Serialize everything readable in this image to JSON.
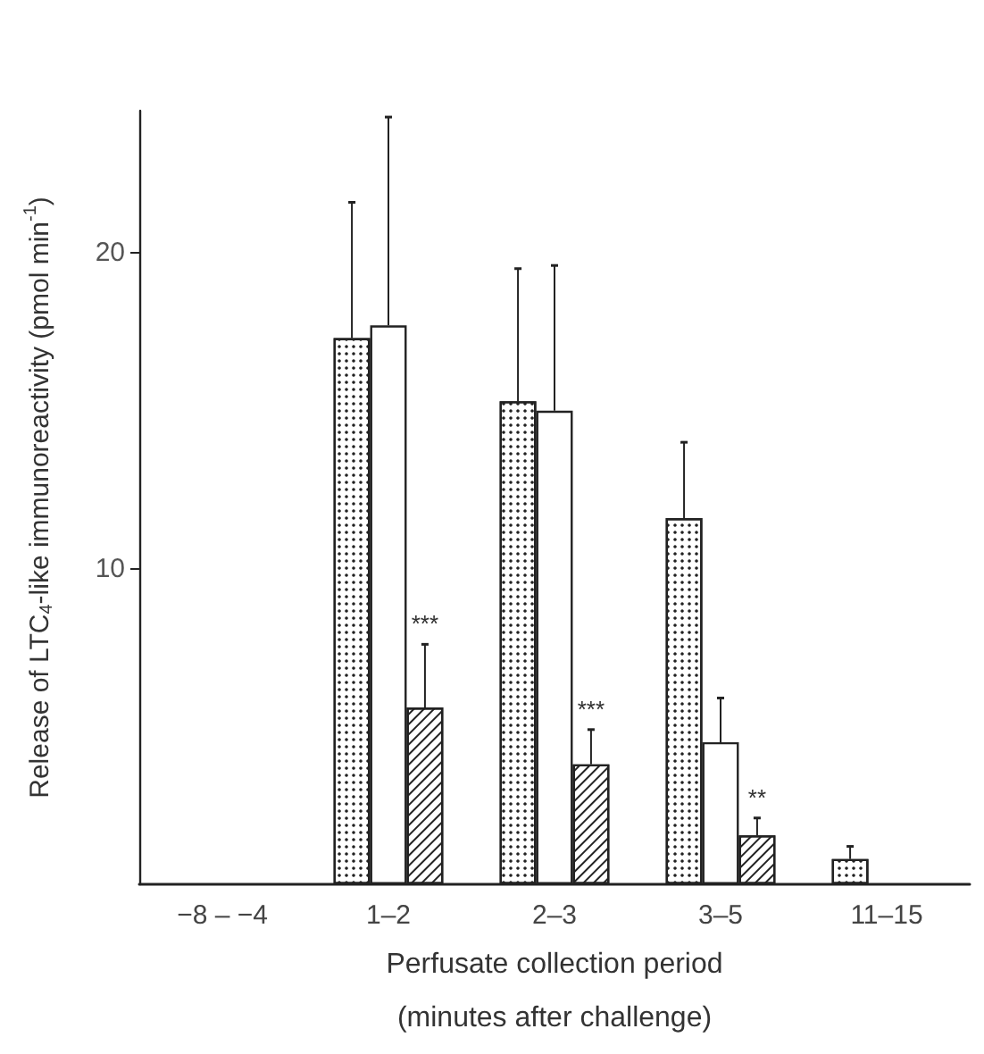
{
  "chart_data": {
    "type": "bar",
    "categories": [
      "−8 – −4",
      "1–2",
      "2–3",
      "3–5",
      "11–15"
    ],
    "series": [
      {
        "color": "#ffffff",
        "values": [
          0,
          17.3,
          15.3,
          11.6,
          0.8
        ],
        "errors": [
          null,
          [
            17.3,
            21.6
          ],
          [
            15.3,
            19.5
          ],
          [
            11.6,
            14.0
          ],
          [
            0.8,
            1.2
          ]
        ]
      },
      {
        "color": "#ffffff",
        "values": [
          0,
          17.7,
          15.0,
          4.5,
          0
        ],
        "errors": [
          null,
          [
            17.7,
            24.3
          ],
          [
            15.0,
            19.6
          ],
          [
            4.5,
            5.9
          ],
          null
        ]
      },
      {
        "color": "#ffffff",
        "values": [
          0,
          5.6,
          3.8,
          1.55,
          0
        ],
        "errors": [
          null,
          [
            5.6,
            7.6
          ],
          [
            3.8,
            4.9
          ],
          [
            1.55,
            2.1
          ],
          null
        ]
      }
    ],
    "xlabel": "Perfusate collection period\n(minutes after challenge)",
    "ylabel": "Release of LTC$_{4}$-like immunoreactivity (pmol min$^{-1}$)",
    "ylim": [
      0,
      24.5
    ],
    "yticks": [
      10,
      20
    ],
    "annotations": [
      "***",
      "***",
      "**"
    ],
    "grid": false
  }
}
